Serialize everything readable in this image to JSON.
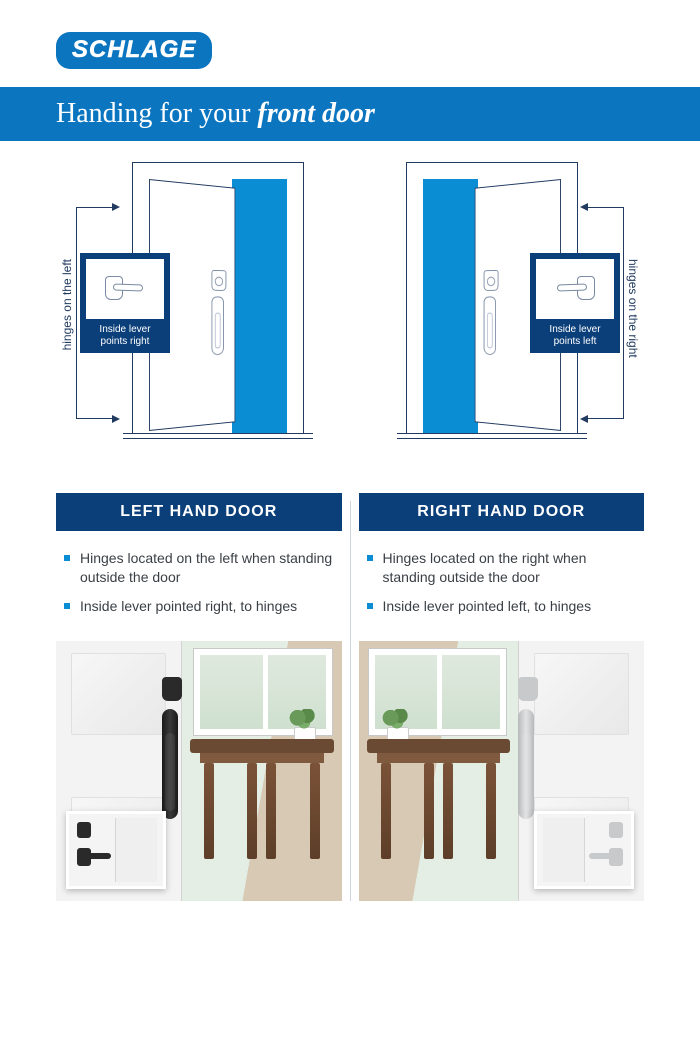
{
  "brand": {
    "name": "SCHLAGE",
    "color": "#0b75c0"
  },
  "title": {
    "prefix": "Handing for your ",
    "emphasis": "front door",
    "bar_color": "#0b75c0"
  },
  "diagram": {
    "left": {
      "callout_l1": "Inside lever",
      "callout_l2": "points right",
      "hinge_label": "hinges on the left"
    },
    "right": {
      "callout_l1": "Inside lever",
      "callout_l2": "points left",
      "hinge_label": "hinges on the right"
    },
    "callout_bg": "#0b3f7a",
    "opening_color": "#0b8dd3",
    "line_color": "#203a60"
  },
  "columns": {
    "left": {
      "header": "LEFT HAND DOOR",
      "bullets": [
        "Hinges located on the left when standing outside the door",
        "Inside lever pointed right, to hinges"
      ],
      "hardware_finish": "dark"
    },
    "right": {
      "header": "RIGHT HAND DOOR",
      "bullets": [
        "Hinges located on the right when standing outside the door",
        "Inside lever pointed left, to hinges"
      ],
      "hardware_finish": "satin_nickel"
    },
    "header_bg": "#0b3f7a",
    "bullet_color": "#0b8dd3"
  }
}
